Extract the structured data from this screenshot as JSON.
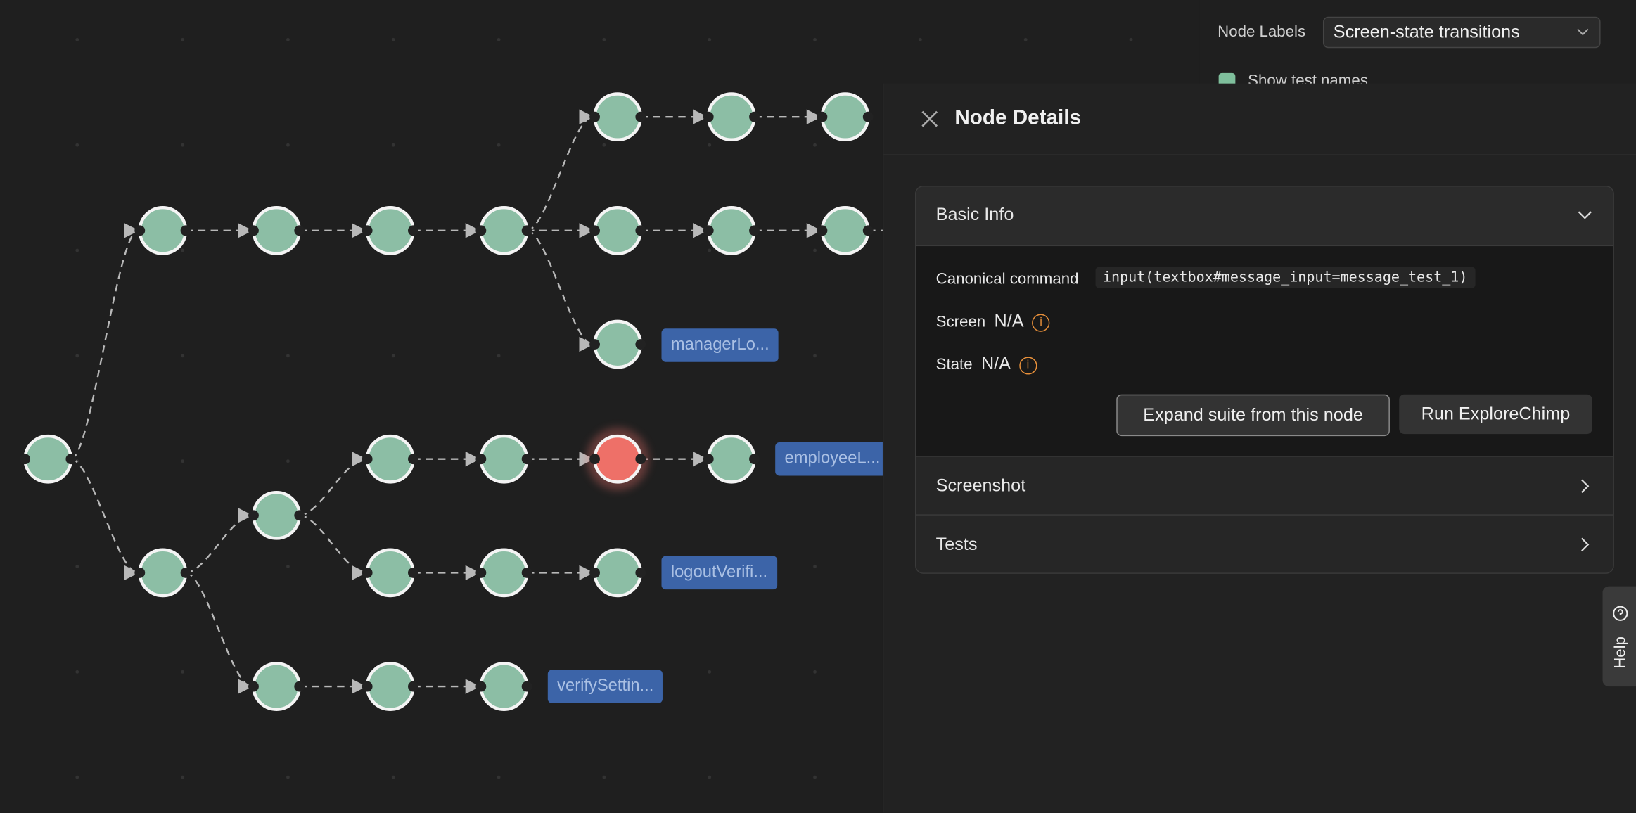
{
  "toolbar": {
    "node_labels_label": "Node Labels",
    "node_labels_value": "Screen-state transitions",
    "show_test_names": "Show test names"
  },
  "graph": {
    "node_labels": [
      "managerLo...",
      "employeeL...",
      "logoutVerifi...",
      "verifySettin..."
    ]
  },
  "panel": {
    "title": "Node Details",
    "basic_info": {
      "title": "Basic Info",
      "canonical_command_label": "Canonical command",
      "canonical_command": "input(textbox#message_input=message_test_1)",
      "screen_label": "Screen",
      "screen_value": "N/A",
      "state_label": "State",
      "state_value": "N/A",
      "buttons": [
        "Expand suite from this node",
        "Run ExploreChimp"
      ]
    },
    "sections": [
      "Screenshot",
      "Tests"
    ]
  },
  "help": "Help"
}
